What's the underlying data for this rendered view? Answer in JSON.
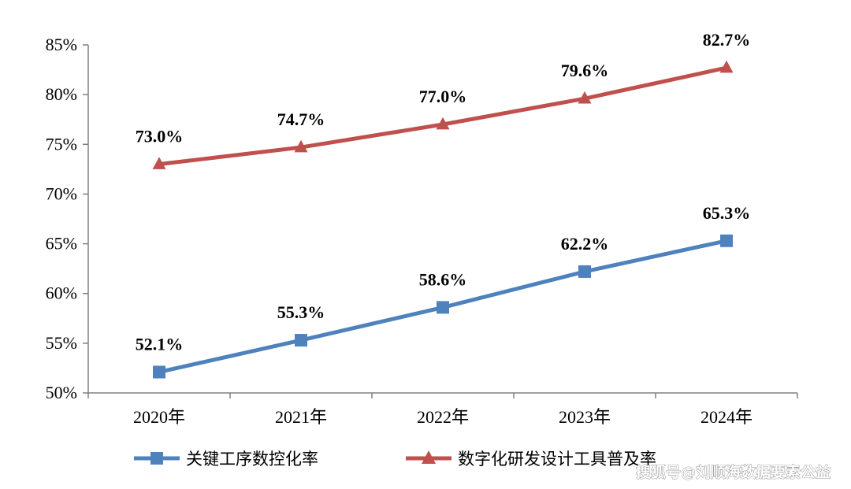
{
  "chart_data": {
    "type": "line",
    "categories": [
      "2020年",
      "2021年",
      "2022年",
      "2023年",
      "2024年"
    ],
    "ylim": [
      50,
      85
    ],
    "yticks": [
      "50%",
      "55%",
      "60%",
      "65%",
      "70%",
      "75%",
      "80%",
      "85%"
    ],
    "ytick_values": [
      50,
      55,
      60,
      65,
      70,
      75,
      80,
      85
    ],
    "grid": false,
    "legend_position": "bottom",
    "series": [
      {
        "name": "关键工序数控化率",
        "values": [
          52.1,
          55.3,
          58.6,
          62.2,
          65.3
        ],
        "labels": [
          "52.1%",
          "55.3%",
          "58.6%",
          "62.2%",
          "65.3%"
        ],
        "color": "#4f81bd",
        "marker": "square"
      },
      {
        "name": "数字化研发设计工具普及率",
        "values": [
          73.0,
          74.7,
          77.0,
          79.6,
          82.7
        ],
        "labels": [
          "73.0%",
          "74.7%",
          "77.0%",
          "79.6%",
          "82.7%"
        ],
        "color": "#c0504d",
        "marker": "triangle"
      }
    ]
  },
  "watermark": "搜狐号@刘顺海数据要素公益"
}
